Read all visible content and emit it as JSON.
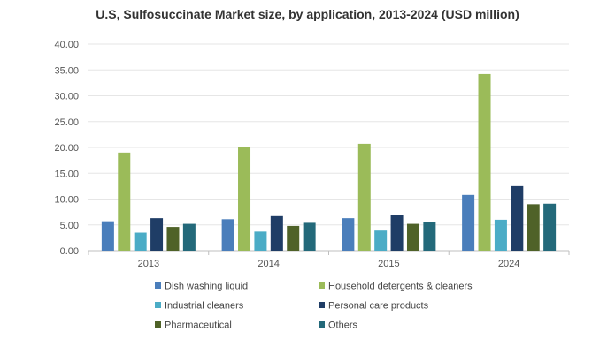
{
  "chart_data": {
    "type": "bar",
    "title": "U.S, Sulfosuccinate Market size, by application, 2013-2024 (USD million)",
    "xlabel": "",
    "ylabel": "",
    "categories": [
      "2013",
      "2014",
      "2015",
      "2024"
    ],
    "ylim": [
      0,
      40
    ],
    "yticks": [
      "0.00",
      "5.00",
      "10.00",
      "15.00",
      "20.00",
      "25.00",
      "30.00",
      "35.00",
      "40.00"
    ],
    "grid": true,
    "legend_position": "bottom",
    "series": [
      {
        "name": "Dish washing liquid",
        "color": "#4a7ebb",
        "values": [
          5.7,
          6.1,
          6.3,
          10.8
        ]
      },
      {
        "name": "Household detergents & cleaners",
        "color": "#9bbb59",
        "values": [
          19.0,
          20.0,
          20.7,
          34.2
        ]
      },
      {
        "name": "Industrial cleaners",
        "color": "#4bacc6",
        "values": [
          3.5,
          3.7,
          3.9,
          6.0
        ]
      },
      {
        "name": "Personal care products",
        "color": "#1f3d66",
        "values": [
          6.3,
          6.7,
          7.0,
          12.5
        ]
      },
      {
        "name": "Pharmaceutical",
        "color": "#4f6228",
        "values": [
          4.6,
          4.8,
          5.2,
          9.0
        ]
      },
      {
        "name": "Others",
        "color": "#23697a",
        "values": [
          5.2,
          5.4,
          5.6,
          9.1
        ]
      }
    ]
  }
}
